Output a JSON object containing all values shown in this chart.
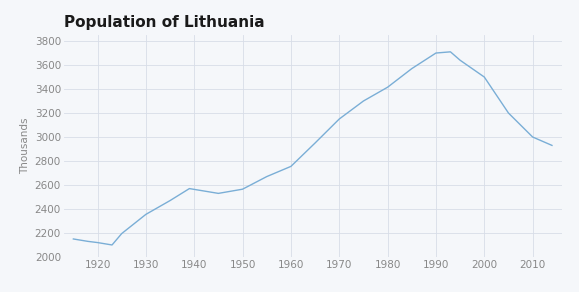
{
  "title": "Population of Lithuania",
  "ylabel": "Thousands",
  "years": [
    1915,
    1918,
    1920,
    1923,
    1925,
    1930,
    1935,
    1939,
    1945,
    1950,
    1955,
    1960,
    1965,
    1970,
    1975,
    1980,
    1985,
    1990,
    1993,
    1995,
    2000,
    2005,
    2010,
    2014
  ],
  "population": [
    2150,
    2130,
    2120,
    2100,
    2195,
    2355,
    2470,
    2570,
    2530,
    2565,
    2670,
    2755,
    2950,
    3150,
    3300,
    3415,
    3570,
    3700,
    3710,
    3640,
    3500,
    3200,
    3000,
    2930
  ],
  "line_color": "#7aaed6",
  "bg_color": "#f5f7fa",
  "plot_bg_color": "#f5f7fa",
  "grid_color": "#d8dde8",
  "tick_color": "#888888",
  "title_color": "#1a1a1a",
  "xlim": [
    1913,
    2016
  ],
  "ylim": [
    2000,
    3850
  ],
  "xticks": [
    1920,
    1930,
    1940,
    1950,
    1960,
    1970,
    1980,
    1990,
    2000,
    2010
  ],
  "yticks": [
    2000,
    2200,
    2400,
    2600,
    2800,
    3000,
    3200,
    3400,
    3600,
    3800
  ],
  "title_fontsize": 11,
  "label_fontsize": 7.5,
  "tick_fontsize": 7.5,
  "linewidth": 1.0
}
